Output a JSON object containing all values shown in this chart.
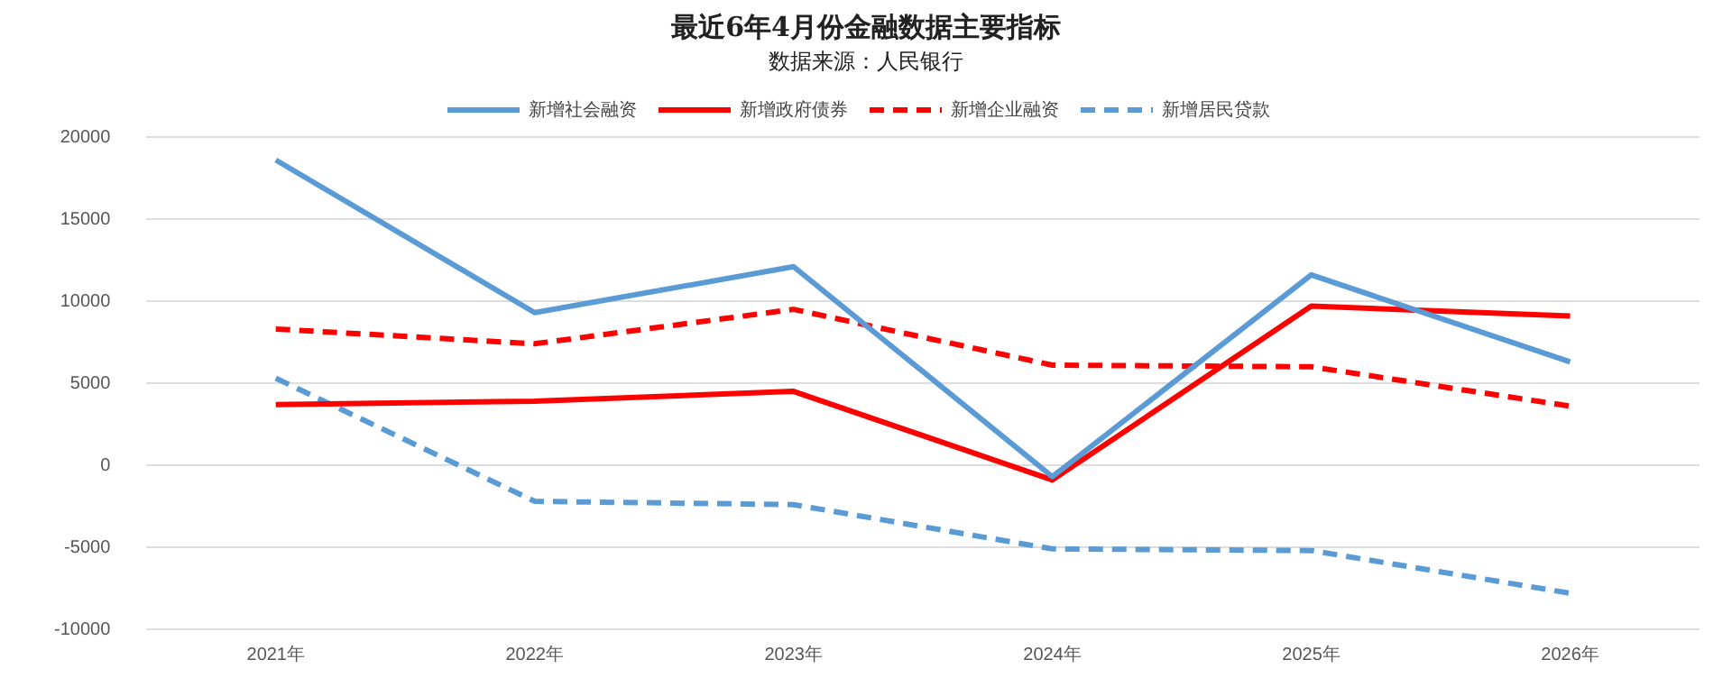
{
  "chart_data": {
    "type": "line",
    "title": "最近6年4月份金融数据主要指标",
    "subtitle": "数据来源：人民银行",
    "categories": [
      "2021年",
      "2022年",
      "2023年",
      "2024年",
      "2025年",
      "2026年"
    ],
    "series": [
      {
        "name": "新增社会融资",
        "color": "#5b9bd5",
        "line_style": "solid",
        "values": [
          18600,
          9300,
          12100,
          -700,
          11600,
          6300
        ]
      },
      {
        "name": "新增政府债券",
        "color": "#ff0000",
        "line_style": "solid",
        "values": [
          3700,
          3900,
          4500,
          -900,
          9700,
          9100
        ]
      },
      {
        "name": "新增企业融资",
        "color": "#ff0000",
        "line_style": "dashed",
        "values": [
          8300,
          7400,
          9500,
          6100,
          6000,
          3600
        ]
      },
      {
        "name": "新增居民贷款",
        "color": "#5b9bd5",
        "line_style": "dashed",
        "values": [
          5300,
          -2200,
          -2400,
          -5100,
          -5200,
          -7800
        ]
      }
    ],
    "ylim": [
      -10000,
      20000
    ],
    "yticks": [
      -10000,
      -5000,
      0,
      5000,
      10000,
      15000,
      20000
    ],
    "grid": "y",
    "legend": "top",
    "marker": "none"
  }
}
